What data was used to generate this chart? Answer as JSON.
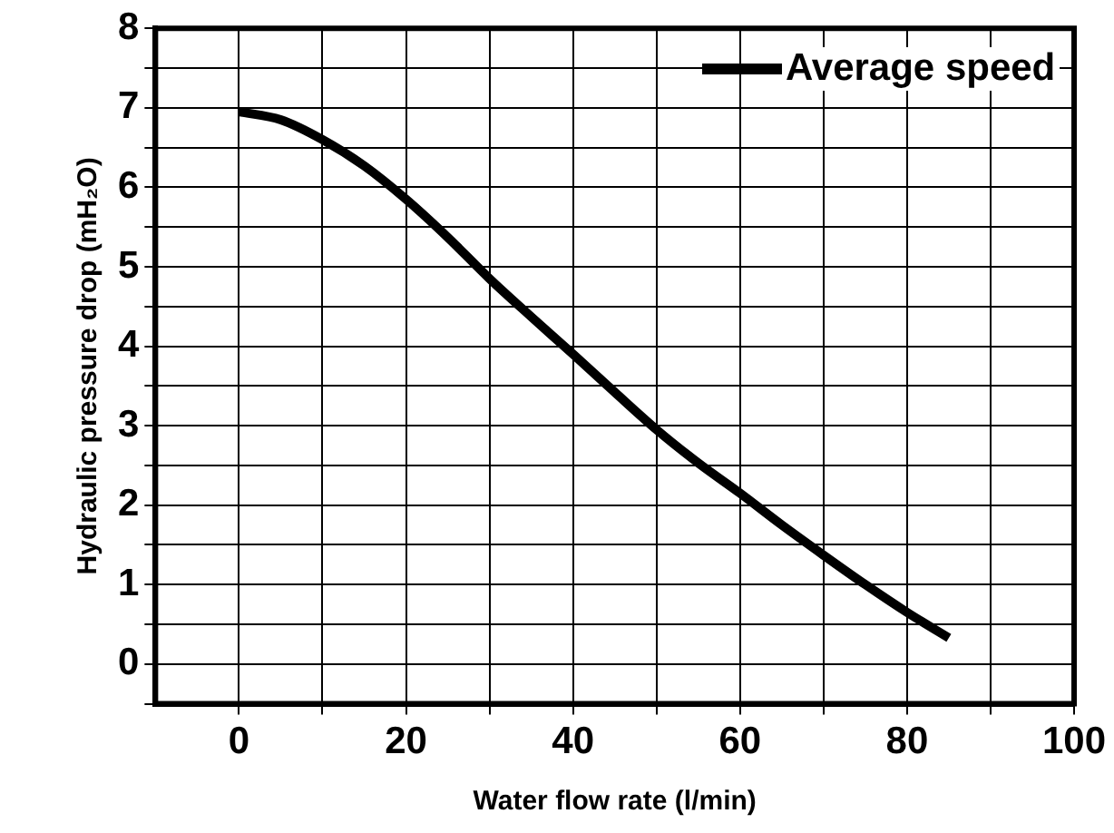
{
  "chart_data": {
    "type": "line",
    "xlabel": "Water flow rate (l/min)",
    "ylabel": "Hydraulic pressure drop (mH₂O)",
    "x": [
      0,
      5,
      10,
      15,
      20,
      25,
      30,
      35,
      40,
      45,
      50,
      55,
      60,
      65,
      70,
      75,
      80,
      85
    ],
    "series": [
      {
        "name": "Average speed",
        "color": "#000000",
        "values": [
          6.95,
          6.85,
          6.6,
          6.27,
          5.85,
          5.37,
          4.85,
          4.37,
          3.9,
          3.42,
          2.95,
          2.53,
          2.15,
          1.75,
          1.37,
          1.0,
          0.65,
          0.33
        ]
      }
    ],
    "xlim": [
      -10,
      100
    ],
    "xticks": [
      0,
      {
        "value": 10,
        "label": null
      },
      20,
      {
        "value": 30,
        "label": null
      },
      40,
      {
        "value": 50,
        "label": null
      },
      60,
      {
        "value": 70,
        "label": null
      },
      80,
      {
        "value": 90,
        "label": null
      },
      100
    ],
    "ylim": [
      -0.5,
      8
    ],
    "yticks": [
      {
        "value": -0.5,
        "label": null
      },
      0,
      {
        "value": 0.5,
        "label": null
      },
      1,
      {
        "value": 1.5,
        "label": null
      },
      2,
      {
        "value": 2.5,
        "label": null
      },
      3,
      {
        "value": 3.5,
        "label": null
      },
      4,
      {
        "value": 4.5,
        "label": null
      },
      5,
      {
        "value": 5.5,
        "label": null
      },
      6,
      {
        "value": 6.5,
        "label": null
      },
      7,
      {
        "value": 7.5,
        "label": null
      },
      8
    ],
    "grid": true,
    "legend": "top right",
    "marker": "none",
    "line_style": "solid"
  }
}
